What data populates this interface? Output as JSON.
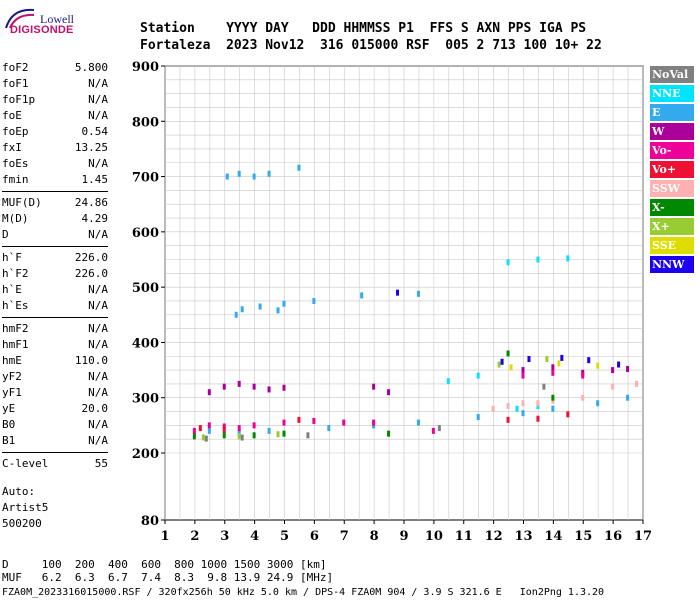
{
  "logo": {
    "top": "Lowell",
    "main": "DIGISONDE"
  },
  "header": {
    "line1": "Station    YYYY DAY   DDD HHMMSS P1  FFS S AXN PPS IGA PS",
    "line2": "Fortaleza  2023 Nov12  316 015000 RSF  005 2 713 100 10+ 22"
  },
  "params": [
    {
      "label": "foF2",
      "value": "5.800"
    },
    {
      "label": "foF1",
      "value": "N/A"
    },
    {
      "label": "foF1p",
      "value": "N/A"
    },
    {
      "label": "foE",
      "value": "N/A"
    },
    {
      "label": "foEp",
      "value": "0.54"
    },
    {
      "label": "fxI",
      "value": "13.25"
    },
    {
      "label": "foEs",
      "value": "N/A"
    },
    {
      "label": "fmin",
      "value": "1.45"
    },
    {
      "label": "MUF(D)",
      "value": "24.86"
    },
    {
      "label": "M(D)",
      "value": "4.29"
    },
    {
      "label": "D",
      "value": "N/A"
    },
    {
      "label": "h`F",
      "value": "226.0"
    },
    {
      "label": "h`F2",
      "value": "226.0"
    },
    {
      "label": "h`E",
      "value": "N/A"
    },
    {
      "label": "h`Es",
      "value": "N/A"
    },
    {
      "label": "hmF2",
      "value": "N/A"
    },
    {
      "label": "hmF1",
      "value": "N/A"
    },
    {
      "label": "hmE",
      "value": "110.0"
    },
    {
      "label": "yF2",
      "value": "N/A"
    },
    {
      "label": "yF1",
      "value": "N/A"
    },
    {
      "label": "yE",
      "value": "20.0"
    },
    {
      "label": "B0",
      "value": "N/A"
    },
    {
      "label": "B1",
      "value": "N/A"
    },
    {
      "label": "C-level",
      "value": "55"
    }
  ],
  "auto": {
    "line1": "Auto:",
    "line2": "Artist5",
    "line3": "500200"
  },
  "bottom": {
    "d_row": "D     100  200  400  600  800 1000 1500 3000 [km]",
    "muf_row": "MUF   6.2  6.3  6.7  7.4  8.3  9.8 13.9 24.9 [MHz]"
  },
  "footer": "FZA0M_2023316015000.RSF / 320fx256h 50 kHz 5.0 km / DPS-4 FZA0M 904 / 3.9 S 321.6 E   Ion2Png 1.3.20",
  "legend": [
    {
      "label": "NoVal",
      "color": "#808080"
    },
    {
      "label": "NNE",
      "color": "#00e4ff"
    },
    {
      "label": "E",
      "color": "#33aaee"
    },
    {
      "label": "W",
      "color": "#aa0099"
    },
    {
      "label": "Vo-",
      "color": "#ee0099"
    },
    {
      "label": "Vo+",
      "color": "#ee1133"
    },
    {
      "label": "SSW",
      "color": "#ffb0b0"
    },
    {
      "label": "X-",
      "color": "#008800"
    },
    {
      "label": "X+",
      "color": "#99cc33"
    },
    {
      "label": "SSE",
      "color": "#dddd00"
    },
    {
      "label": "NNW",
      "color": "#1a00ee"
    }
  ],
  "chart_data": {
    "type": "scatter",
    "xlabel": "",
    "ylabel": "",
    "xlim": [
      1,
      17
    ],
    "ylim": [
      80,
      900
    ],
    "x_ticks": [
      "1",
      "2",
      "3",
      "4",
      "5",
      "6",
      "7",
      "8",
      "9",
      "10",
      "11",
      "12",
      "13",
      "14",
      "15",
      "16",
      "17"
    ],
    "y_ticks": [
      "80",
      "200",
      "300",
      "400",
      "500",
      "600",
      "700",
      "800",
      "900"
    ],
    "grid": true,
    "series": [
      {
        "name": "E",
        "color": "#33aaee",
        "points": [
          [
            3.1,
            700
          ],
          [
            3.5,
            705
          ],
          [
            4.0,
            700
          ],
          [
            4.5,
            705
          ],
          [
            5.5,
            716
          ],
          [
            3.6,
            460
          ],
          [
            4.2,
            465
          ],
          [
            5.0,
            470
          ],
          [
            6.0,
            475
          ],
          [
            7.6,
            485
          ],
          [
            9.5,
            488
          ],
          [
            3.4,
            450
          ],
          [
            4.8,
            458
          ],
          [
            2.5,
            240
          ],
          [
            3.5,
            236
          ],
          [
            4.5,
            240
          ],
          [
            6.5,
            245
          ],
          [
            8.0,
            250
          ],
          [
            9.5,
            255
          ],
          [
            11.5,
            265
          ],
          [
            13.0,
            272
          ],
          [
            14.0,
            280
          ],
          [
            15.5,
            290
          ],
          [
            16.5,
            300
          ]
        ]
      },
      {
        "name": "NNE",
        "color": "#00e4ff",
        "points": [
          [
            12.5,
            545
          ],
          [
            13.5,
            550
          ],
          [
            14.5,
            552
          ],
          [
            12.8,
            280
          ],
          [
            13.5,
            285
          ],
          [
            10.5,
            330
          ],
          [
            11.5,
            340
          ]
        ]
      },
      {
        "name": "W",
        "color": "#aa0099",
        "points": [
          [
            2.5,
            310
          ],
          [
            3.0,
            320
          ],
          [
            3.5,
            325
          ],
          [
            4.0,
            320
          ],
          [
            4.5,
            315
          ],
          [
            5.0,
            318
          ],
          [
            8.0,
            320
          ],
          [
            8.5,
            310
          ],
          [
            13.0,
            350
          ],
          [
            14.0,
            355
          ],
          [
            15.0,
            345
          ],
          [
            16.0,
            350
          ],
          [
            16.5,
            352
          ]
        ]
      },
      {
        "name": "Vo-",
        "color": "#ee0099",
        "points": [
          [
            2.0,
            240
          ],
          [
            2.5,
            250
          ],
          [
            3.0,
            248
          ],
          [
            3.5,
            245
          ],
          [
            4.0,
            250
          ],
          [
            5.0,
            255
          ],
          [
            6.0,
            258
          ],
          [
            7.0,
            255
          ],
          [
            8.0,
            255
          ],
          [
            10.0,
            240
          ],
          [
            13.0,
            340
          ],
          [
            14.0,
            345
          ],
          [
            15.0,
            340
          ]
        ]
      },
      {
        "name": "Vo+",
        "color": "#ee1133",
        "points": [
          [
            2.2,
            245
          ],
          [
            3.0,
            242
          ],
          [
            5.5,
            260
          ],
          [
            12.5,
            260
          ],
          [
            13.5,
            262
          ],
          [
            14.5,
            270
          ]
        ]
      },
      {
        "name": "SSW",
        "color": "#ffb0b0",
        "points": [
          [
            12.0,
            280
          ],
          [
            12.5,
            285
          ],
          [
            13.0,
            290
          ],
          [
            13.5,
            290
          ],
          [
            14.0,
            295
          ],
          [
            15.0,
            300
          ],
          [
            16.0,
            320
          ],
          [
            16.8,
            325
          ]
        ]
      },
      {
        "name": "X-",
        "color": "#008800",
        "points": [
          [
            2.0,
            230
          ],
          [
            3.0,
            232
          ],
          [
            4.0,
            232
          ],
          [
            5.0,
            235
          ],
          [
            8.5,
            235
          ],
          [
            12.5,
            380
          ],
          [
            14.0,
            300
          ]
        ]
      },
      {
        "name": "X+",
        "color": "#99cc33",
        "points": [
          [
            2.3,
            228
          ],
          [
            3.5,
            230
          ],
          [
            4.8,
            234
          ],
          [
            12.2,
            360
          ],
          [
            13.8,
            370
          ]
        ]
      },
      {
        "name": "SSE",
        "color": "#dddd00",
        "points": [
          [
            12.6,
            355
          ],
          [
            14.2,
            362
          ],
          [
            15.5,
            358
          ]
        ]
      },
      {
        "name": "NNW",
        "color": "#1a00ee",
        "points": [
          [
            8.8,
            490
          ],
          [
            12.3,
            365
          ],
          [
            13.2,
            370
          ],
          [
            14.3,
            372
          ],
          [
            15.2,
            368
          ],
          [
            16.2,
            360
          ]
        ]
      },
      {
        "name": "NoVal",
        "color": "#808080",
        "points": [
          [
            2.4,
            226
          ],
          [
            3.6,
            228
          ],
          [
            5.8,
            232
          ],
          [
            10.2,
            245
          ],
          [
            13.7,
            320
          ]
        ]
      }
    ]
  }
}
